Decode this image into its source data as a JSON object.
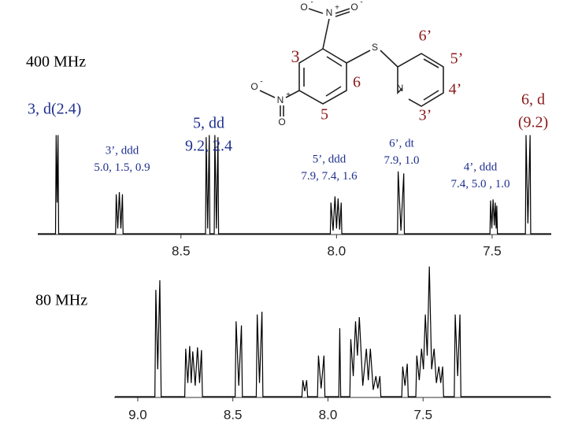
{
  "chart_data": [
    {
      "type": "line",
      "title": "400 MHz",
      "color": "#000000",
      "xlim": [
        8.96,
        7.31
      ],
      "ylim": [
        0,
        1
      ],
      "xticks": [
        8.5,
        {
          "value": 8,
          "label": "8.0"
        },
        7.5
      ],
      "x": [
        8.96,
        8.903,
        8.901,
        8.898,
        8.895,
        8.893,
        8.71,
        8.708,
        8.703,
        8.698,
        8.693,
        8.688,
        8.686,
        8.421,
        8.419,
        8.414,
        8.409,
        8.407,
        8.393,
        8.391,
        8.386,
        8.381,
        8.379,
        8.02,
        8.018,
        8.011,
        8.005,
        8.0,
        7.995,
        7.99,
        7.985,
        7.983,
        7.804,
        7.802,
        7.793,
        7.784,
        7.782,
        7.507,
        7.505,
        7.501,
        7.497,
        7.493,
        7.49,
        7.487,
        7.485,
        7.483,
        7.393,
        7.391,
        7.385,
        7.378,
        7.376,
        7.31
      ],
      "values": [
        0,
        0,
        0.95,
        0.3,
        0.95,
        0,
        0,
        0.38,
        0.05,
        0.4,
        0.05,
        0.38,
        0,
        0,
        0.93,
        0.05,
        0.95,
        0,
        0,
        0.95,
        0.05,
        0.93,
        0,
        0,
        0.3,
        0.03,
        0.36,
        0.05,
        0.34,
        0.04,
        0.3,
        0,
        0,
        0.6,
        0.03,
        0.58,
        0,
        0,
        0.32,
        0.05,
        0.33,
        0.08,
        0.3,
        0.05,
        0.27,
        0,
        0,
        0.95,
        0.1,
        0.95,
        0,
        0
      ],
      "annotations": [
        {
          "lines": [
            "3, d(2.4)"
          ],
          "color": "#1f2f8f"
        },
        {
          "lines": [
            "3’, ddd",
            "5.0, 1.5, 0.9"
          ],
          "color": "#1f2f8f"
        },
        {
          "lines": [
            "5, dd",
            "9.2, 2.4"
          ],
          "color": "#1f2f8f"
        },
        {
          "lines": [
            "5’, ddd",
            "7.9, 7.4, 1.6"
          ],
          "color": "#1f2f8f"
        },
        {
          "lines": [
            "6’, dt",
            "7.9, 1.0"
          ],
          "color": "#1f2f8f"
        },
        {
          "lines": [
            "4’, ddd",
            "7.4, 5.0 , 1.0"
          ],
          "color": "#1f2f8f"
        },
        {
          "lines": [
            "6, d",
            "(9.2)"
          ],
          "color": "#8b1a1a"
        }
      ]
    },
    {
      "type": "line",
      "title": "80 MHz",
      "color": "#000000",
      "xlim": [
        9.124,
        6.826
      ],
      "ylim": [
        0,
        1
      ],
      "xticks": [
        {
          "value": 9,
          "label": "9.0"
        },
        8.5,
        {
          "value": 8,
          "label": "8.0"
        },
        7.5
      ],
      "x": [
        9.12,
        8.91,
        8.905,
        8.895,
        8.884,
        8.877,
        8.753,
        8.748,
        8.737,
        8.727,
        8.719,
        8.711,
        8.698,
        8.686,
        8.675,
        8.665,
        8.66,
        8.488,
        8.483,
        8.469,
        8.455,
        8.45,
        8.377,
        8.372,
        8.36,
        8.347,
        8.342,
        8.137,
        8.132,
        8.122,
        8.112,
        8.107,
        8.055,
        8.05,
        8.036,
        8.021,
        8.016,
        7.943,
        7.938,
        7.933,
        7.885,
        7.88,
        7.867,
        7.855,
        7.845,
        7.835,
        7.817,
        7.798,
        7.788,
        7.777,
        7.762,
        7.748,
        7.738,
        7.727,
        7.722,
        7.612,
        7.607,
        7.595,
        7.583,
        7.578,
        7.538,
        7.533,
        7.52,
        7.508,
        7.498,
        7.488,
        7.478,
        7.467,
        7.455,
        7.442,
        7.43,
        7.417,
        7.407,
        7.397,
        7.392,
        7.336,
        7.331,
        7.318,
        7.306,
        7.301,
        6.83
      ],
      "values": [
        0,
        0,
        0.78,
        0.2,
        0.85,
        0,
        0,
        0.35,
        0.1,
        0.37,
        0.1,
        0.33,
        0.08,
        0.36,
        0.1,
        0.34,
        0,
        0,
        0.55,
        0.08,
        0.52,
        0,
        0,
        0.6,
        0.1,
        0.62,
        0,
        0,
        0.12,
        0.04,
        0.12,
        0,
        0,
        0.3,
        0.06,
        0.3,
        0,
        0,
        0.5,
        0,
        0,
        0.42,
        0.15,
        0.55,
        0.3,
        0.58,
        0.08,
        0.35,
        0.12,
        0.35,
        0.05,
        0.15,
        0.06,
        0.15,
        0,
        0,
        0.22,
        0.08,
        0.24,
        0,
        0,
        0.3,
        0.12,
        0.35,
        0.2,
        0.6,
        0.3,
        0.95,
        0.2,
        0.35,
        0.1,
        0.22,
        0.1,
        0.22,
        0,
        0,
        0.6,
        0.15,
        0.6,
        0,
        0
      ]
    }
  ],
  "structure": {
    "atoms": [
      "O",
      "N",
      "O",
      "S",
      "N",
      "O",
      "N",
      "O"
    ],
    "charges": [
      "-",
      "+",
      "-",
      "+",
      "-"
    ],
    "positions": [
      "3",
      "6",
      "5",
      "6’",
      "5’",
      "4’",
      "3’"
    ],
    "position_color": "#8b1a1a"
  }
}
